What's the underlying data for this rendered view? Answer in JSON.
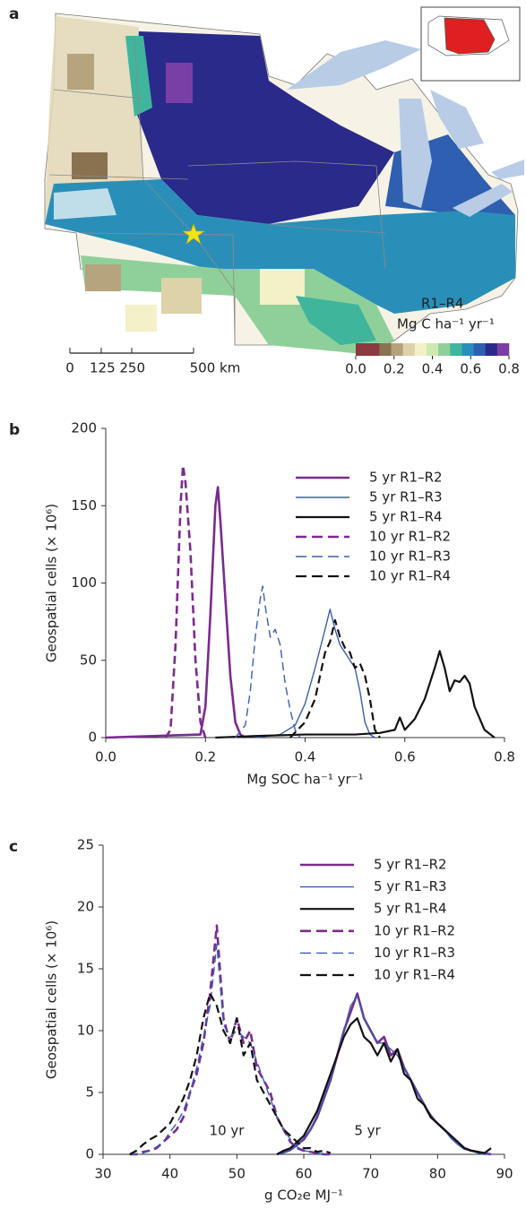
{
  "map": {
    "panel_label": "a",
    "colorbar": {
      "title": "R1–R4",
      "units": "Mg C ha⁻¹ yr⁻¹",
      "colors": [
        "#8b3a42",
        "#8b3a42",
        "#8a7250",
        "#b3a27a",
        "#ddd2a8",
        "#f4f0c8",
        "#cfe8b0",
        "#8fd09a",
        "#3fb59c",
        "#2a8fb8",
        "#2f5fb0",
        "#2a2a8a",
        "#7a3fa6"
      ],
      "lim": [
        0,
        0.8
      ],
      "ticks": [
        {
          "value": 0,
          "label": "0.0"
        },
        0.2,
        0.4,
        0.6,
        0.8
      ]
    },
    "scale_bar": [
      "0",
      "125 250",
      "500 km"
    ]
  },
  "chart_data": [
    {
      "type": "line",
      "panel_label": "b",
      "xlabel": "Mg SOC ha⁻¹ yr⁻¹",
      "ylabel": "Geospatial cells (× 10⁶)",
      "xlim": [
        0,
        0.8
      ],
      "ylim": [
        0,
        200
      ],
      "xticks": [
        {
          "value": 0,
          "label": "0.0"
        },
        0.2,
        0.4,
        0.6,
        0.8
      ],
      "yticks": [
        0,
        50,
        100,
        150,
        200
      ],
      "series": [
        {
          "name": "5 yr R1–R2",
          "color": "#7b2a8f",
          "dashed": false,
          "linewidth": 2.6,
          "x": [
            0,
            0.19,
            0.2,
            0.21,
            0.22,
            0.225,
            0.23,
            0.24,
            0.25,
            0.26,
            0.27,
            0.28
          ],
          "values": [
            0,
            2,
            20,
            80,
            150,
            162,
            140,
            90,
            40,
            10,
            2,
            0
          ]
        },
        {
          "name": "5 yr R1–R3",
          "color": "#3a5fb0",
          "dashed": false,
          "linewidth": 1.4,
          "x": [
            0.3,
            0.35,
            0.38,
            0.4,
            0.42,
            0.44,
            0.45,
            0.46,
            0.47,
            0.48,
            0.49,
            0.5,
            0.51,
            0.52,
            0.53,
            0.54
          ],
          "values": [
            0,
            2,
            8,
            22,
            45,
            70,
            83,
            70,
            60,
            55,
            50,
            45,
            30,
            10,
            2,
            0
          ]
        },
        {
          "name": "5 yr R1–R4",
          "color": "#111111",
          "dashed": false,
          "linewidth": 2.2,
          "x": [
            0.22,
            0.3,
            0.4,
            0.5,
            0.55,
            0.58,
            0.59,
            0.6,
            0.62,
            0.64,
            0.66,
            0.67,
            0.68,
            0.69,
            0.7,
            0.71,
            0.72,
            0.73,
            0.74,
            0.76,
            0.78
          ],
          "values": [
            0,
            1,
            2,
            2,
            3,
            5,
            13,
            5,
            12,
            25,
            45,
            56,
            45,
            30,
            37,
            36,
            40,
            35,
            20,
            5,
            0
          ]
        },
        {
          "name": "10 yr R1–R2",
          "color": "#7b2a8f",
          "dashed": true,
          "linewidth": 2.6,
          "x": [
            0.12,
            0.13,
            0.14,
            0.15,
            0.155,
            0.16,
            0.17,
            0.18,
            0.19,
            0.2
          ],
          "values": [
            0,
            5,
            60,
            150,
            176,
            165,
            120,
            50,
            10,
            0
          ]
        },
        {
          "name": "10 yr R1–R3",
          "color": "#3a5fb0",
          "dashed": true,
          "linewidth": 1.4,
          "x": [
            0.26,
            0.28,
            0.29,
            0.3,
            0.31,
            0.315,
            0.32,
            0.33,
            0.34,
            0.35,
            0.36,
            0.37,
            0.38,
            0.39
          ],
          "values": [
            0,
            8,
            30,
            65,
            90,
            98,
            85,
            65,
            70,
            60,
            35,
            18,
            5,
            0
          ]
        },
        {
          "name": "10 yr R1–R4",
          "color": "#111111",
          "dashed": true,
          "linewidth": 2.2,
          "x": [
            0.37,
            0.4,
            0.42,
            0.44,
            0.45,
            0.46,
            0.47,
            0.48,
            0.49,
            0.5,
            0.51,
            0.52,
            0.53,
            0.54,
            0.55
          ],
          "values": [
            0,
            10,
            25,
            55,
            62,
            76,
            65,
            58,
            55,
            45,
            48,
            40,
            25,
            5,
            0
          ]
        }
      ]
    },
    {
      "type": "line",
      "panel_label": "c",
      "xlabel": "g CO₂e MJ⁻¹",
      "ylabel": "Geospatial cells (× 10⁶)",
      "xlim": [
        30,
        90
      ],
      "ylim": [
        0,
        25
      ],
      "xticks": [
        30,
        40,
        50,
        60,
        70,
        80,
        90
      ],
      "yticks": [
        0,
        5,
        10,
        15,
        20,
        25
      ],
      "annotations": [
        "10 yr",
        "5 yr"
      ],
      "series": [
        {
          "name": "5 yr R1–R2",
          "color": "#7b2a8f",
          "dashed": false,
          "linewidth": 2.6,
          "x": [
            56,
            57,
            58,
            59,
            60,
            61,
            62,
            63,
            64,
            65,
            66,
            67,
            68,
            69,
            70,
            71,
            72,
            73,
            74,
            75,
            76,
            77,
            78,
            79,
            80,
            81,
            82,
            83,
            84,
            85,
            86,
            87,
            88
          ],
          "values": [
            0,
            0.2,
            0.4,
            0.8,
            1.2,
            2,
            3,
            4.5,
            6,
            8,
            10,
            11.5,
            13,
            11,
            10,
            9,
            9.5,
            8,
            8.5,
            7,
            6,
            5,
            4,
            3,
            2.5,
            2,
            1.5,
            1,
            0.5,
            0.3,
            0.2,
            0.1,
            0
          ]
        },
        {
          "name": "5 yr R1–R3",
          "color": "#3a5fb0",
          "dashed": false,
          "linewidth": 1.4,
          "x": [
            56,
            57,
            58,
            59,
            60,
            61,
            62,
            63,
            64,
            65,
            66,
            67,
            68,
            69,
            70,
            71,
            72,
            73,
            74,
            75,
            76,
            77,
            78,
            79,
            80,
            81,
            82,
            83,
            84,
            85,
            86,
            87,
            88
          ],
          "values": [
            0,
            0.1,
            0.3,
            0.7,
            1.3,
            2,
            3.2,
            4.5,
            6,
            8,
            10,
            12,
            12.8,
            11,
            10,
            9,
            9,
            8.5,
            8,
            7,
            6,
            5,
            4,
            3.2,
            2.5,
            2,
            1.3,
            0.8,
            0.4,
            0.3,
            0.1,
            0,
            0
          ]
        },
        {
          "name": "5 yr R1–R4",
          "color": "#111111",
          "dashed": false,
          "linewidth": 2.2,
          "x": [
            56,
            57,
            58,
            59,
            60,
            61,
            62,
            63,
            64,
            65,
            66,
            67,
            68,
            69,
            70,
            71,
            72,
            73,
            74,
            75,
            76,
            77,
            78,
            79,
            80,
            81,
            82,
            83,
            84,
            85,
            86,
            87,
            88
          ],
          "values": [
            0,
            0.3,
            0.5,
            1,
            1.5,
            2.5,
            3.5,
            5,
            6.5,
            8,
            9.5,
            10.5,
            11,
            9.5,
            9,
            8,
            9,
            7.5,
            8.5,
            6.5,
            6,
            4.5,
            4,
            3,
            2.5,
            2,
            1.5,
            1,
            0.5,
            0.3,
            0.2,
            0.1,
            0.5
          ]
        },
        {
          "name": "10 yr R1–R2",
          "color": "#7b2a8f",
          "dashed": true,
          "linewidth": 2.6,
          "x": [
            34,
            35,
            36,
            37,
            38,
            39,
            40,
            41,
            42,
            43,
            44,
            45,
            46,
            47,
            48,
            49,
            50,
            51,
            52,
            53,
            54,
            55,
            56,
            57,
            58,
            59,
            60,
            61,
            62,
            63,
            64
          ],
          "values": [
            0,
            0,
            0.2,
            0.3,
            0.5,
            1,
            1.5,
            2,
            3,
            5,
            6.5,
            9,
            13,
            18.5,
            11,
            9,
            11,
            9,
            10,
            7,
            6,
            5,
            3,
            2,
            1,
            0.5,
            0.3,
            0.2,
            0.1,
            0,
            0
          ]
        },
        {
          "name": "10 yr R1–R3",
          "color": "#3a5fb0",
          "dashed": true,
          "linewidth": 1.4,
          "x": [
            34,
            35,
            36,
            37,
            38,
            39,
            40,
            41,
            42,
            43,
            44,
            45,
            46,
            47,
            48,
            49,
            50,
            51,
            52,
            53,
            54,
            55,
            56,
            57,
            58,
            59,
            60,
            61,
            62,
            63,
            64
          ],
          "values": [
            0,
            0,
            0.1,
            0.3,
            0.6,
            1,
            1.8,
            2.5,
            3.5,
            5,
            7,
            9.5,
            12,
            17,
            10.5,
            9.5,
            10,
            9.5,
            9,
            7.5,
            6,
            4.5,
            3,
            2,
            1.2,
            0.6,
            0.3,
            0.2,
            0.1,
            0,
            0
          ]
        },
        {
          "name": "10 yr R1–R4",
          "color": "#111111",
          "dashed": true,
          "linewidth": 2.2,
          "x": [
            34,
            35,
            36,
            37,
            38,
            39,
            40,
            41,
            42,
            43,
            44,
            45,
            46,
            47,
            48,
            49,
            50,
            51,
            52,
            53,
            54,
            55,
            56,
            57,
            58,
            59,
            60,
            61,
            62,
            63,
            64
          ],
          "values": [
            0,
            0.3,
            0.8,
            1.2,
            1.5,
            2,
            2.5,
            3.5,
            4.5,
            6,
            8,
            11,
            13,
            12,
            10,
            9,
            11,
            8,
            9,
            6,
            5,
            4,
            3,
            2,
            1.5,
            1,
            0.5,
            0.5,
            0.2,
            0.3,
            0.1
          ]
        }
      ]
    }
  ]
}
